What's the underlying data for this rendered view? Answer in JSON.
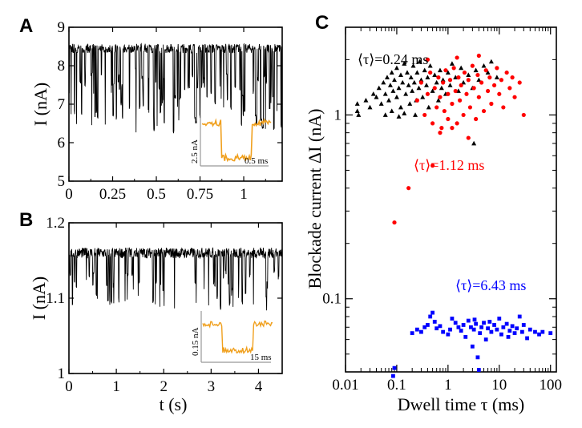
{
  "panels": {
    "A": {
      "label": "A",
      "ylabel": "I (nA)",
      "xticks": [
        "0",
        "0.25",
        "0.5",
        "0.75",
        "1"
      ],
      "xtick_values": [
        0,
        0.25,
        0.5,
        0.75,
        1
      ],
      "yticks": [
        "5",
        "6",
        "7",
        "8",
        "9"
      ],
      "ytick_values": [
        5,
        6,
        7,
        8,
        9
      ],
      "xlim": [
        0,
        1.22
      ],
      "ylim": [
        5,
        9
      ],
      "trace": {
        "baseline": 8.45,
        "noise": 0.12,
        "color": "#000000"
      },
      "inset": {
        "scale_y": "2.5 nA",
        "scale_x": "0.5 ms",
        "color": "#f0a01e"
      }
    },
    "B": {
      "label": "B",
      "ylabel": "I (nA)",
      "xlabel": "t (s)",
      "xticks": [
        "0",
        "1",
        "2",
        "3",
        "4"
      ],
      "xtick_values": [
        0,
        1,
        2,
        3,
        4
      ],
      "yticks": [
        "1",
        "1.1",
        "1.2"
      ],
      "ytick_values": [
        1.0,
        1.1,
        1.2
      ],
      "xlim": [
        0,
        4.5
      ],
      "ylim": [
        1.0,
        1.2
      ],
      "trace": {
        "baseline": 1.16,
        "noise": 0.007,
        "color": "#000000"
      },
      "inset": {
        "scale_y": "0.15 nA",
        "scale_x": "15 ms",
        "color": "#f0a01e"
      }
    },
    "C": {
      "label": "C",
      "xlabel": "Dwell  time τ (ms)",
      "ylabel": "Blockade current   ΔI (nA)",
      "xticks": [
        "0.01",
        "0.1",
        "1",
        "10",
        "100"
      ],
      "yticks": [
        "0.1",
        "1"
      ],
      "annotations": [
        {
          "text": "⟨τ⟩=0.24 ms",
          "color": "#000000"
        },
        {
          "text": "⟨τ⟩=1.12 ms",
          "color": "#ff0000"
        },
        {
          "text": "⟨τ⟩=6.43 ms",
          "color": "#0000ff"
        }
      ]
    }
  },
  "chart_data": [
    {
      "type": "line",
      "panel": "A",
      "ylabel": "I (nA)",
      "xlim": [
        0,
        1.22
      ],
      "ylim": [
        5,
        9
      ],
      "series": [
        {
          "values_summary": "open-pore baseline ~8.45 nA with many short blockade spikes down to ~6-7 nA"
        }
      ]
    },
    {
      "type": "line",
      "panel": "B",
      "xlabel": "t (s)",
      "ylabel": "I (nA)",
      "xlim": [
        0,
        4.5
      ],
      "ylim": [
        1.0,
        1.2
      ],
      "series": [
        {
          "values_summary": "baseline ~1.16 nA with blockade events down to ~1.08-1.1 nA"
        }
      ]
    },
    {
      "type": "scatter",
      "panel": "C",
      "xlabel": "Dwell  time τ (ms)",
      "ylabel": "Blockade current   ΔI (nA)",
      "xscale": "log",
      "yscale": "log",
      "xlim": [
        0.01,
        130
      ],
      "ylim": [
        0.04,
        3.0
      ],
      "series": [
        {
          "name": "⟨τ⟩=0.24 ms",
          "color": "#000000",
          "marker": "triangle",
          "points": [
            [
              0.017,
              1.05
            ],
            [
              0.017,
              1.15
            ],
            [
              0.018,
              1.0
            ],
            [
              0.025,
              1.2
            ],
            [
              0.03,
              1.1
            ],
            [
              0.035,
              1.3
            ],
            [
              0.04,
              1.25
            ],
            [
              0.045,
              1.4
            ],
            [
              0.05,
              1.15
            ],
            [
              0.055,
              1.5
            ],
            [
              0.06,
              1.3
            ],
            [
              0.065,
              1.6
            ],
            [
              0.07,
              1.2
            ],
            [
              0.075,
              1.45
            ],
            [
              0.08,
              1.7
            ],
            [
              0.085,
              1.35
            ],
            [
              0.09,
              1.55
            ],
            [
              0.1,
              1.25
            ],
            [
              0.1,
              1.8
            ],
            [
              0.11,
              1.4
            ],
            [
              0.12,
              1.65
            ],
            [
              0.12,
              1.1
            ],
            [
              0.13,
              1.5
            ],
            [
              0.14,
              1.9
            ],
            [
              0.15,
              1.3
            ],
            [
              0.16,
              1.7
            ],
            [
              0.17,
              1.45
            ],
            [
              0.18,
              1.15
            ],
            [
              0.19,
              1.6
            ],
            [
              0.2,
              1.35
            ],
            [
              0.21,
              1.85
            ],
            [
              0.22,
              1.5
            ],
            [
              0.24,
              1.2
            ],
            [
              0.25,
              1.7
            ],
            [
              0.27,
              1.4
            ],
            [
              0.28,
              1.95
            ],
            [
              0.3,
              1.55
            ],
            [
              0.32,
              1.25
            ],
            [
              0.35,
              1.75
            ],
            [
              0.38,
              1.45
            ],
            [
              0.4,
              1.6
            ],
            [
              0.42,
              1.1
            ],
            [
              0.45,
              1.85
            ],
            [
              0.5,
              1.35
            ],
            [
              0.55,
              1.65
            ],
            [
              0.6,
              1.5
            ],
            [
              0.65,
              1.2
            ],
            [
              0.7,
              1.75
            ],
            [
              0.75,
              1.4
            ],
            [
              0.8,
              1.55
            ],
            [
              0.9,
              1.3
            ],
            [
              1.0,
              1.7
            ],
            [
              1.1,
              1.45
            ],
            [
              1.2,
              1.9
            ],
            [
              1.4,
              1.6
            ],
            [
              1.6,
              1.35
            ],
            [
              1.8,
              1.8
            ],
            [
              2.0,
              1.5
            ],
            [
              2.5,
              1.65
            ],
            [
              3.0,
              1.4
            ],
            [
              3.2,
              0.7
            ],
            [
              3.5,
              1.75
            ],
            [
              4.0,
              1.55
            ],
            [
              5.0,
              1.85
            ],
            [
              6.0,
              1.7
            ],
            [
              7.0,
              1.95
            ],
            [
              9.0,
              1.6
            ],
            [
              0.06,
              1.0
            ],
            [
              0.08,
              1.05
            ],
            [
              0.11,
              0.98
            ],
            [
              0.14,
              1.02
            ],
            [
              0.23,
              1.0
            ]
          ]
        },
        {
          "name": "⟨τ⟩=1.12 ms",
          "color": "#ff0000",
          "marker": "circle",
          "points": [
            [
              0.09,
              0.26
            ],
            [
              0.17,
              0.4
            ],
            [
              0.25,
              1.2
            ],
            [
              0.3,
              1.5
            ],
            [
              0.35,
              1.0
            ],
            [
              0.4,
              1.3
            ],
            [
              0.45,
              1.7
            ],
            [
              0.5,
              0.9
            ],
            [
              0.5,
              0.53
            ],
            [
              0.55,
              1.4
            ],
            [
              0.6,
              1.1
            ],
            [
              0.65,
              1.6
            ],
            [
              0.7,
              1.25
            ],
            [
              0.75,
              0.85
            ],
            [
              0.8,
              1.5
            ],
            [
              0.85,
              1.05
            ],
            [
              0.9,
              1.75
            ],
            [
              1.0,
              1.3
            ],
            [
              1.0,
              0.95
            ],
            [
              1.1,
              1.55
            ],
            [
              1.2,
              1.15
            ],
            [
              1.3,
              1.8
            ],
            [
              1.4,
              1.35
            ],
            [
              1.5,
              0.9
            ],
            [
              1.6,
              1.6
            ],
            [
              1.7,
              1.2
            ],
            [
              1.8,
              1.45
            ],
            [
              2.0,
              1.0
            ],
            [
              2.1,
              1.7
            ],
            [
              2.3,
              1.3
            ],
            [
              2.5,
              1.55
            ],
            [
              2.7,
              1.1
            ],
            [
              3.0,
              1.85
            ],
            [
              3.2,
              1.4
            ],
            [
              3.5,
              0.95
            ],
            [
              3.8,
              1.65
            ],
            [
              4.0,
              1.25
            ],
            [
              4.5,
              1.5
            ],
            [
              5.0,
              1.05
            ],
            [
              5.5,
              1.75
            ],
            [
              6.0,
              1.35
            ],
            [
              6.5,
              1.6
            ],
            [
              7.0,
              1.15
            ],
            [
              8.0,
              1.45
            ],
            [
              9.0,
              1.8
            ],
            [
              10.0,
              1.3
            ],
            [
              11.0,
              1.55
            ],
            [
              12.0,
              1.1
            ],
            [
              14.0,
              1.7
            ],
            [
              16.0,
              1.4
            ],
            [
              18.0,
              1.6
            ],
            [
              20.0,
              1.25
            ],
            [
              25.0,
              1.5
            ],
            [
              30.0,
              1.0
            ],
            [
              0.4,
              2.0
            ],
            [
              1.5,
              2.05
            ],
            [
              4.0,
              2.1
            ],
            [
              0.7,
              0.8
            ],
            [
              2.5,
              0.75
            ],
            [
              1.2,
              0.85
            ]
          ]
        },
        {
          "name": "⟨τ⟩=6.43 ms",
          "color": "#0000ff",
          "marker": "square",
          "points": [
            [
              0.085,
              0.038
            ],
            [
              0.09,
              0.042
            ],
            [
              0.2,
              0.065
            ],
            [
              0.25,
              0.068
            ],
            [
              0.3,
              0.066
            ],
            [
              0.35,
              0.07
            ],
            [
              0.4,
              0.072
            ],
            [
              0.45,
              0.08
            ],
            [
              0.5,
              0.084
            ],
            [
              0.55,
              0.075
            ],
            [
              0.6,
              0.069
            ],
            [
              0.8,
              0.066
            ],
            [
              1.0,
              0.064
            ],
            [
              1.2,
              0.078
            ],
            [
              1.4,
              0.074
            ],
            [
              1.6,
              0.07
            ],
            [
              1.8,
              0.067
            ],
            [
              2.0,
              0.072
            ],
            [
              2.2,
              0.062
            ],
            [
              2.5,
              0.076
            ],
            [
              2.8,
              0.07
            ],
            [
              3.0,
              0.055
            ],
            [
              3.2,
              0.068
            ],
            [
              3.5,
              0.073
            ],
            [
              3.8,
              0.048
            ],
            [
              4.0,
              0.041
            ],
            [
              4.2,
              0.065
            ],
            [
              4.5,
              0.07
            ],
            [
              5.0,
              0.074
            ],
            [
              5.5,
              0.06
            ],
            [
              6.0,
              0.069
            ],
            [
              6.5,
              0.075
            ],
            [
              7.0,
              0.066
            ],
            [
              8.0,
              0.072
            ],
            [
              9.0,
              0.068
            ],
            [
              10.0,
              0.078
            ],
            [
              11.0,
              0.064
            ],
            [
              12.0,
              0.07
            ],
            [
              14.0,
              0.073
            ],
            [
              16.0,
              0.067
            ],
            [
              18.0,
              0.071
            ],
            [
              20.0,
              0.065
            ],
            [
              22.0,
              0.069
            ],
            [
              25.0,
              0.08
            ],
            [
              28.0,
              0.066
            ],
            [
              30.0,
              0.072
            ],
            [
              35.0,
              0.061
            ],
            [
              40.0,
              0.068
            ],
            [
              50.0,
              0.066
            ],
            [
              60.0,
              0.064
            ],
            [
              70.0,
              0.066
            ],
            [
              100.0,
              0.065
            ],
            [
              0.7,
              0.071
            ],
            [
              1.1,
              0.068
            ],
            [
              3.3,
              0.077
            ],
            [
              15.0,
              0.062
            ]
          ]
        }
      ]
    }
  ]
}
